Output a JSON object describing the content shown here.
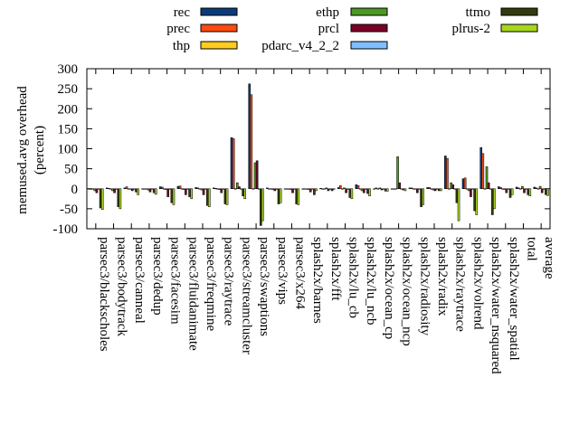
{
  "chart_data": {
    "type": "bar",
    "ylabel": "memused.avg overhead",
    "ylabel2": "(percent)",
    "ylim": [
      -100,
      300
    ],
    "yticks": [
      -100,
      -50,
      0,
      50,
      100,
      150,
      200,
      250,
      300
    ],
    "grid": false,
    "legend_position": "top",
    "categories": [
      "parsec3/blackscholes",
      "parsec3/bodytrack",
      "parsec3/canneal",
      "parsec3/dedup",
      "parsec3/facesim",
      "parsec3/fluidanimate",
      "parsec3/freqmine",
      "parsec3/raytrace",
      "parsec3/streamcluster",
      "parsec3/swaptions",
      "parsec3/vips",
      "parsec3/x264",
      "splash2x/barnes",
      "splash2x/fft",
      "splash2x/lu_cb",
      "splash2x/lu_ncb",
      "splash2x/ocean_cp",
      "splash2x/ocean_ncp",
      "splash2x/radiosity",
      "splash2x/radix",
      "splash2x/raytrace",
      "splash2x/volrend",
      "splash2x/water_nsquared",
      "splash2x/water_spatial",
      "total",
      "average"
    ],
    "series": [
      {
        "name": "rec",
        "color": "#0b3c7a",
        "values": [
          0,
          2,
          2,
          0,
          5,
          6,
          3,
          2,
          128,
          262,
          2,
          0,
          0,
          1,
          3,
          10,
          0,
          0,
          2,
          3,
          82,
          25,
          103,
          5,
          4,
          4
        ]
      },
      {
        "name": "prec",
        "color": "#ff4a12",
        "values": [
          0,
          1,
          5,
          0,
          4,
          7,
          2,
          1,
          125,
          235,
          0,
          0,
          0,
          0,
          8,
          8,
          2,
          0,
          2,
          3,
          76,
          27,
          88,
          3,
          2,
          2
        ]
      },
      {
        "name": "thp",
        "color": "#ffcc1f",
        "values": [
          0,
          0,
          0,
          0,
          0,
          0,
          0,
          0,
          0,
          0,
          0,
          0,
          0,
          0,
          0,
          0,
          0,
          0,
          0,
          0,
          0,
          0,
          0,
          0,
          0,
          0
        ]
      },
      {
        "name": "ethp",
        "color": "#4d9a22",
        "values": [
          -5,
          -5,
          0,
          -3,
          -2,
          -2,
          -3,
          -2,
          15,
          65,
          -2,
          -2,
          -2,
          2,
          2,
          -5,
          2,
          80,
          0,
          -3,
          15,
          -5,
          55,
          -2,
          6,
          6
        ]
      },
      {
        "name": "prcl",
        "color": "#7a0026",
        "values": [
          -10,
          -10,
          -5,
          -8,
          -20,
          -15,
          -15,
          -10,
          5,
          70,
          -5,
          -10,
          -8,
          -5,
          -10,
          -10,
          -3,
          15,
          -10,
          -5,
          10,
          -20,
          15,
          -10,
          -10,
          -10
        ]
      },
      {
        "name": "pdarc_v4_2_2",
        "color": "#80bfff",
        "values": [
          0,
          0,
          0,
          0,
          0,
          0,
          0,
          0,
          0,
          0,
          0,
          0,
          0,
          0,
          0,
          0,
          0,
          0,
          0,
          0,
          0,
          0,
          0,
          0,
          0,
          0
        ]
      },
      {
        "name": "ttmo",
        "color": "#353a0d",
        "values": [
          -48,
          -45,
          -8,
          -10,
          -35,
          -20,
          -42,
          -38,
          -18,
          -92,
          -38,
          -38,
          -15,
          -5,
          -22,
          -12,
          -6,
          -3,
          -45,
          -5,
          -35,
          -55,
          -65,
          -22,
          -15,
          -15
        ]
      },
      {
        "name": "plrus-2",
        "color": "#a7d61f",
        "values": [
          -52,
          -50,
          -15,
          -14,
          -40,
          -25,
          -45,
          -40,
          -25,
          -80,
          -35,
          -40,
          -5,
          0,
          -25,
          -18,
          -6,
          -5,
          -40,
          -5,
          -80,
          -65,
          -50,
          -15,
          -18,
          -17
        ]
      }
    ]
  }
}
